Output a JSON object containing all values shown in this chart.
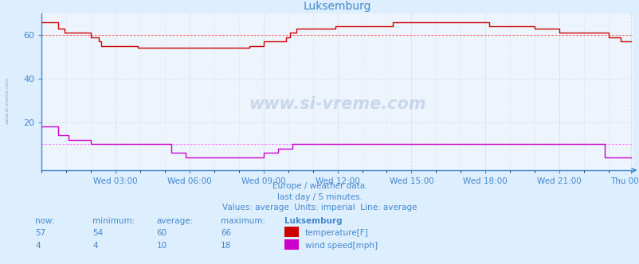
{
  "title": "Luksemburg",
  "bg_color": "#ddeeff",
  "plot_bg_color": "#eef4fc",
  "grid_color": "#c8d8ec",
  "temp_color": "#cc0000",
  "wind_color": "#cc00cc",
  "avg_temp_color": "#ff6060",
  "avg_wind_color": "#ff60ff",
  "axis_color": "#4488cc",
  "text_color": "#4488cc",
  "title_color": "#4488cc",
  "ylim": [
    -2,
    70
  ],
  "yticks": [
    20,
    40,
    60
  ],
  "temp_avg": 60,
  "wind_avg": 10,
  "xtick_labels": [
    "Wed 03:00",
    "Wed 06:00",
    "Wed 09:00",
    "Wed 12:00",
    "Wed 15:00",
    "Wed 18:00",
    "Wed 21:00",
    "Thu 00:00"
  ],
  "footer_lines": [
    "Europe / weather data.",
    "last day / 5 minutes.",
    "Values: average  Units: imperial  Line: average"
  ],
  "legend_label1": "temperature[F]",
  "legend_label2": "wind speed[mph]",
  "n_points": 288,
  "temp_data": [
    66,
    66,
    66,
    66,
    66,
    66,
    66,
    66,
    63,
    63,
    63,
    61,
    61,
    61,
    61,
    61,
    61,
    61,
    61,
    61,
    61,
    61,
    61,
    61,
    59,
    59,
    59,
    59,
    57,
    55,
    55,
    55,
    55,
    55,
    55,
    55,
    55,
    55,
    55,
    55,
    55,
    55,
    55,
    55,
    55,
    55,
    55,
    54,
    54,
    54,
    54,
    54,
    54,
    54,
    54,
    54,
    54,
    54,
    54,
    54,
    54,
    54,
    54,
    54,
    54,
    54,
    54,
    54,
    54,
    54,
    54,
    54,
    54,
    54,
    54,
    54,
    54,
    54,
    54,
    54,
    54,
    54,
    54,
    54,
    54,
    54,
    54,
    54,
    54,
    54,
    54,
    54,
    54,
    54,
    54,
    54,
    54,
    54,
    54,
    54,
    54,
    55,
    55,
    55,
    55,
    55,
    55,
    55,
    57,
    57,
    57,
    57,
    57,
    57,
    57,
    57,
    57,
    57,
    57,
    59,
    59,
    61,
    61,
    61,
    63,
    63,
    63,
    63,
    63,
    63,
    63,
    63,
    63,
    63,
    63,
    63,
    63,
    63,
    63,
    63,
    63,
    63,
    63,
    64,
    64,
    64,
    64,
    64,
    64,
    64,
    64,
    64,
    64,
    64,
    64,
    64,
    64,
    64,
    64,
    64,
    64,
    64,
    64,
    64,
    64,
    64,
    64,
    64,
    64,
    64,
    64,
    66,
    66,
    66,
    66,
    66,
    66,
    66,
    66,
    66,
    66,
    66,
    66,
    66,
    66,
    66,
    66,
    66,
    66,
    66,
    66,
    66,
    66,
    66,
    66,
    66,
    66,
    66,
    66,
    66,
    66,
    66,
    66,
    66,
    66,
    66,
    66,
    66,
    66,
    66,
    66,
    66,
    66,
    66,
    66,
    66,
    66,
    66,
    64,
    64,
    64,
    64,
    64,
    64,
    64,
    64,
    64,
    64,
    64,
    64,
    64,
    64,
    64,
    64,
    64,
    64,
    64,
    64,
    64,
    64,
    63,
    63,
    63,
    63,
    63,
    63,
    63,
    63,
    63,
    63,
    63,
    63,
    61,
    61,
    61,
    61,
    61,
    61,
    61,
    61,
    61,
    61,
    61,
    61,
    61,
    61,
    61,
    61,
    61,
    61,
    61,
    61,
    61,
    61,
    61,
    61,
    59,
    59,
    59,
    59,
    59,
    59,
    57,
    57,
    57,
    57,
    57,
    57
  ],
  "wind_data": [
    18,
    18,
    18,
    18,
    18,
    18,
    18,
    18,
    14,
    14,
    14,
    14,
    14,
    12,
    12,
    12,
    12,
    12,
    12,
    12,
    12,
    12,
    12,
    12,
    10,
    10,
    10,
    10,
    10,
    10,
    10,
    10,
    10,
    10,
    10,
    10,
    10,
    10,
    10,
    10,
    10,
    10,
    10,
    10,
    10,
    10,
    10,
    10,
    10,
    10,
    10,
    10,
    10,
    10,
    10,
    10,
    10,
    10,
    10,
    10,
    10,
    10,
    10,
    6,
    6,
    6,
    6,
    6,
    6,
    6,
    4,
    4,
    4,
    4,
    4,
    4,
    4,
    4,
    4,
    4,
    4,
    4,
    4,
    4,
    4,
    4,
    4,
    4,
    4,
    4,
    4,
    4,
    4,
    4,
    4,
    4,
    4,
    4,
    4,
    4,
    4,
    4,
    4,
    4,
    4,
    4,
    4,
    4,
    6,
    6,
    6,
    6,
    6,
    6,
    6,
    8,
    8,
    8,
    8,
    8,
    8,
    8,
    10,
    10,
    10,
    10,
    10,
    10,
    10,
    10,
    10,
    10,
    10,
    10,
    10,
    10,
    10,
    10,
    10,
    10,
    10,
    10,
    10,
    10,
    10,
    10,
    10,
    10,
    10,
    10,
    10,
    10,
    10,
    10,
    10,
    10,
    10,
    10,
    10,
    10,
    10,
    10,
    10,
    10,
    10,
    10,
    10,
    10,
    10,
    10,
    10,
    10,
    10,
    10,
    10,
    10,
    10,
    10,
    10,
    10,
    10,
    10,
    10,
    10,
    10,
    10,
    10,
    10,
    10,
    10,
    10,
    10,
    10,
    10,
    10,
    10,
    10,
    10,
    10,
    10,
    10,
    10,
    10,
    10,
    10,
    10,
    10,
    10,
    10,
    10,
    10,
    10,
    10,
    10,
    10,
    10,
    10,
    10,
    10,
    10,
    10,
    10,
    10,
    10,
    10,
    10,
    10,
    10,
    10,
    10,
    10,
    10,
    10,
    10,
    10,
    10,
    10,
    10,
    10,
    10,
    10,
    10,
    10,
    10,
    10,
    10,
    10,
    10,
    10,
    10,
    10,
    10,
    10,
    10,
    10,
    10,
    10,
    10,
    10,
    10,
    10,
    10,
    10,
    10,
    10,
    10,
    10,
    10,
    10,
    10,
    10,
    10,
    10,
    10,
    4,
    4,
    4,
    4,
    4,
    4,
    4,
    4,
    4,
    4,
    4,
    4,
    4,
    4
  ]
}
